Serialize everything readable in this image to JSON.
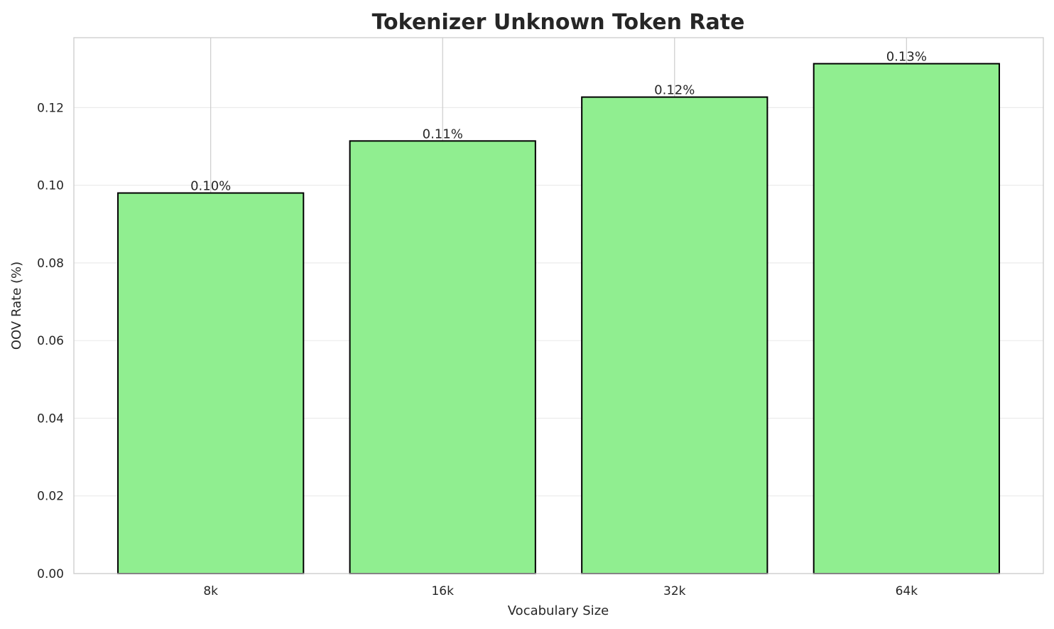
{
  "chart_data": {
    "type": "bar",
    "title": "Tokenizer Unknown Token Rate",
    "xlabel": "Vocabulary Size",
    "ylabel": "OOV Rate (%)",
    "categories": [
      "8k",
      "16k",
      "32k",
      "64k"
    ],
    "values": [
      0.098,
      0.1114,
      0.1227,
      0.1313
    ],
    "data_labels": [
      "0.10%",
      "0.11%",
      "0.12%",
      "0.13%"
    ],
    "ylim": [
      0,
      0.138
    ],
    "yticks": [
      0.0,
      0.02,
      0.04,
      0.06,
      0.08,
      0.1,
      0.12
    ],
    "ytick_labels": [
      "0.00",
      "0.02",
      "0.04",
      "0.06",
      "0.08",
      "0.10",
      "0.12"
    ],
    "grid": true,
    "bar_color": "#90ee90",
    "edge_color": "#000000",
    "grid_color": "#ebebeb"
  }
}
